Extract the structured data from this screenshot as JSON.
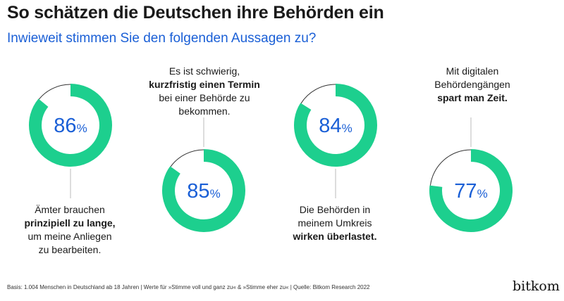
{
  "title": "So schätzen die Deutschen ihre Behörden ein",
  "subtitle": "Inwieweit stimmen Sie den folgenden Aussagen zu?",
  "chart_data": {
    "type": "donut",
    "unit": "%",
    "items": [
      {
        "value": 86,
        "label": "86",
        "pct": "%",
        "text_pre": "Ämter brauchen",
        "text_bold": "prinzipiell zu lange,",
        "text_post": "um meine Anliegen zu bearbeiten."
      },
      {
        "value": 85,
        "label": "85",
        "pct": "%",
        "text_pre": "Es ist schwierig,",
        "text_bold": "kurzfristig einen Termin",
        "text_post": "bei einer Behörde zu bekommen."
      },
      {
        "value": 84,
        "label": "84",
        "pct": "%",
        "text_pre": "Die Behörden in meinem Umkreis",
        "text_bold": "wirken überlastet.",
        "text_post": ""
      },
      {
        "value": 77,
        "label": "77",
        "pct": "%",
        "text_pre": "Mit digitalen Behördengängen",
        "text_bold": "spart man Zeit.",
        "text_post": ""
      }
    ]
  },
  "colors": {
    "ring": "#1dcf8e",
    "number": "#1a5fd6",
    "remainder": "#333333"
  },
  "footer": {
    "basis": "Basis: 1.004 Menschen in Deutschland ab 18 Jahren | Werte für »Stimme voll und ganz zu« & »Stimme eher zu« | Quelle: Bitkom Research 2022",
    "logo": "bitkom"
  }
}
